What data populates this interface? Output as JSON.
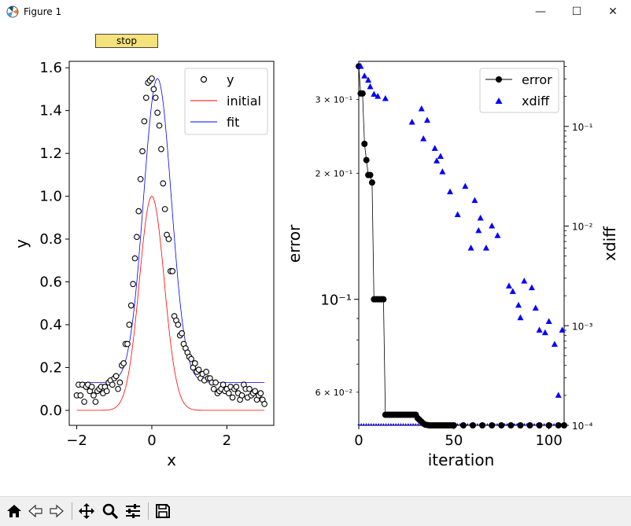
{
  "window": {
    "title": "Figure 1",
    "min_glyph": "—",
    "max_glyph": "☐",
    "close_glyph": "✕"
  },
  "stop_button": {
    "label": "stop"
  },
  "toolbar": {
    "buttons": [
      "home-icon",
      "back-icon",
      "forward-icon",
      "pan-icon",
      "zoom-icon",
      "configure-subplots-icon",
      "save-icon"
    ]
  },
  "chart_data": [
    {
      "type": "scatter",
      "xlabel": "x",
      "ylabel": "y",
      "xlim": [
        -2.2,
        3.25
      ],
      "ylim": [
        -0.07,
        1.63
      ],
      "xticks": [
        -2,
        0,
        2
      ],
      "xtick_labels": [
        "−2",
        "0",
        "2"
      ],
      "yticks": [
        0.0,
        0.2,
        0.4,
        0.6,
        0.8,
        1.0,
        1.2,
        1.4,
        1.6
      ],
      "ytick_labels": [
        "0.0",
        "0.2",
        "0.4",
        "0.6",
        "0.8",
        "1.0",
        "1.2",
        "1.4",
        "1.6"
      ],
      "legend_position": "top-right",
      "series": [
        {
          "name": "y",
          "kind": "markers",
          "color": "#000000",
          "x": [
            -2.0,
            -1.95,
            -1.9,
            -1.85,
            -1.8,
            -1.75,
            -1.7,
            -1.65,
            -1.6,
            -1.55,
            -1.5,
            -1.45,
            -1.4,
            -1.35,
            -1.3,
            -1.25,
            -1.2,
            -1.15,
            -1.1,
            -1.05,
            -1.0,
            -0.95,
            -0.9,
            -0.85,
            -0.8,
            -0.75,
            -0.7,
            -0.65,
            -0.6,
            -0.55,
            -0.5,
            -0.45,
            -0.4,
            -0.35,
            -0.3,
            -0.25,
            -0.2,
            -0.15,
            -0.1,
            -0.05,
            0.0,
            0.05,
            0.1,
            0.15,
            0.2,
            0.25,
            0.3,
            0.35,
            0.4,
            0.45,
            0.5,
            0.55,
            0.6,
            0.65,
            0.7,
            0.75,
            0.8,
            0.85,
            0.9,
            0.95,
            1.0,
            1.05,
            1.1,
            1.15,
            1.2,
            1.25,
            1.3,
            1.35,
            1.4,
            1.45,
            1.5,
            1.55,
            1.6,
            1.65,
            1.7,
            1.75,
            1.8,
            1.85,
            1.9,
            1.95,
            2.0,
            2.05,
            2.1,
            2.15,
            2.2,
            2.25,
            2.3,
            2.35,
            2.4,
            2.45,
            2.5,
            2.55,
            2.6,
            2.65,
            2.7,
            2.75,
            2.8,
            2.85,
            2.9,
            2.95,
            3.0
          ],
          "y": [
            0.07,
            0.12,
            0.07,
            0.12,
            0.04,
            0.11,
            0.12,
            0.09,
            0.11,
            0.07,
            0.04,
            0.09,
            0.1,
            0.11,
            0.08,
            0.11,
            0.09,
            0.13,
            0.14,
            0.12,
            0.15,
            0.16,
            0.1,
            0.13,
            0.21,
            0.22,
            0.31,
            0.31,
            0.4,
            0.49,
            0.59,
            0.71,
            0.81,
            0.93,
            1.08,
            1.21,
            1.35,
            1.46,
            1.53,
            1.54,
            1.55,
            1.5,
            1.46,
            1.39,
            1.33,
            1.22,
            1.06,
            0.94,
            0.82,
            0.8,
            0.65,
            0.65,
            0.44,
            0.42,
            0.4,
            0.35,
            0.36,
            0.31,
            0.29,
            0.27,
            0.25,
            0.24,
            0.2,
            0.22,
            0.18,
            0.19,
            0.15,
            0.17,
            0.14,
            0.18,
            0.15,
            0.15,
            0.13,
            0.1,
            0.13,
            0.08,
            0.09,
            0.1,
            0.12,
            0.09,
            0.1,
            0.08,
            0.11,
            0.06,
            0.1,
            0.11,
            0.08,
            0.05,
            0.07,
            0.12,
            0.1,
            0.06,
            0.1,
            0.07,
            0.08,
            0.09,
            0.05,
            0.07,
            0.08,
            0.05,
            0.03
          ]
        },
        {
          "name": "initial",
          "kind": "line",
          "color": "#ff0000",
          "model": "gaussian",
          "amplitude": 1.0,
          "center": 0.0,
          "sigma": 0.33,
          "offset": 0.0,
          "x_range": [
            -2.0,
            3.0
          ]
        },
        {
          "name": "fit",
          "kind": "line",
          "color": "#0000ff",
          "model": "gaussian",
          "amplitude": 1.42,
          "center": 0.15,
          "sigma": 0.37,
          "offset": 0.13,
          "x_range": [
            -2.0,
            3.0
          ]
        }
      ]
    },
    {
      "type": "line",
      "xlabel": "iteration",
      "ylabel": "error",
      "y2label": "xdiff",
      "xlim": [
        0,
        108
      ],
      "xticks": [
        0,
        50,
        100
      ],
      "xtick_labels": [
        "0",
        "50",
        "100"
      ],
      "yscale": "log",
      "ylim": [
        0.05,
        0.37
      ],
      "yticks_major": [
        0.1
      ],
      "ytick_major_labels": [
        "10⁻¹"
      ],
      "yticks_minor": [
        0.06,
        0.2,
        0.3
      ],
      "ytick_minor_labels": [
        "6 × 10⁻²",
        "2 × 10⁻¹",
        "3 × 10⁻¹"
      ],
      "y2scale": "log",
      "y2lim": [
        0.0001,
        0.45
      ],
      "y2ticks": [
        0.0001,
        0.001,
        0.01,
        0.1
      ],
      "y2tick_labels": [
        "10⁻⁴",
        "10⁻³",
        "10⁻²",
        "10⁻¹"
      ],
      "legend_position": "top-right",
      "series": [
        {
          "name": "error",
          "axis": "left",
          "color": "#000000",
          "x": [
            0,
            1,
            2,
            3,
            4,
            5,
            6,
            7,
            8,
            9,
            10,
            11,
            12,
            13,
            14,
            15,
            16,
            17,
            18,
            19,
            20,
            21,
            22,
            23,
            24,
            25,
            26,
            27,
            28,
            29,
            30,
            31,
            32,
            33,
            34,
            35,
            36,
            37,
            38,
            39,
            40,
            41,
            42,
            43,
            44,
            45,
            46,
            47,
            48,
            49,
            50,
            55,
            60,
            65,
            70,
            75,
            80,
            85,
            90,
            95,
            100,
            105,
            108
          ],
          "y": [
            0.36,
            0.31,
            0.31,
            0.235,
            0.215,
            0.198,
            0.198,
            0.19,
            0.1,
            0.1,
            0.1,
            0.1,
            0.1,
            0.1,
            0.053,
            0.053,
            0.053,
            0.053,
            0.053,
            0.053,
            0.053,
            0.053,
            0.053,
            0.053,
            0.053,
            0.053,
            0.053,
            0.053,
            0.053,
            0.053,
            0.053,
            0.052,
            0.0515,
            0.051,
            0.0505,
            0.0502,
            0.0501,
            0.05,
            0.05,
            0.05,
            0.05,
            0.05,
            0.05,
            0.05,
            0.05,
            0.05,
            0.05,
            0.05,
            0.05,
            0.05,
            0.05,
            0.05,
            0.05,
            0.05,
            0.05,
            0.05,
            0.05,
            0.05,
            0.05,
            0.05,
            0.05,
            0.05,
            0.05
          ]
        },
        {
          "name": "xdiff",
          "axis": "right",
          "color": "#0000ff",
          "x": [
            1,
            3,
            5,
            6,
            8,
            10,
            14,
            28,
            33,
            34,
            36,
            40,
            41,
            43,
            44,
            48,
            52,
            56,
            59,
            61,
            63,
            64,
            67,
            70,
            73,
            79,
            81,
            84,
            85,
            87,
            91,
            93,
            95,
            98,
            100,
            103,
            105,
            107
          ],
          "y": [
            0.4,
            0.32,
            0.29,
            0.25,
            0.21,
            0.2,
            0.19,
            0.11,
            0.15,
            0.075,
            0.115,
            0.06,
            0.045,
            0.05,
            0.035,
            0.022,
            0.013,
            0.025,
            0.006,
            0.018,
            0.009,
            0.012,
            0.006,
            0.01,
            0.008,
            0.0025,
            0.0022,
            0.0016,
            0.0012,
            0.0028,
            0.0024,
            0.0015,
            0.0009,
            0.00085,
            0.0011,
            0.00065,
            0.0002,
            0.0009
          ]
        },
        {
          "name": "",
          "axis": "right",
          "color": "#0000ff",
          "kind": "floor-markers",
          "x_range": [
            0,
            108
          ],
          "y": 0.0001
        }
      ]
    }
  ]
}
